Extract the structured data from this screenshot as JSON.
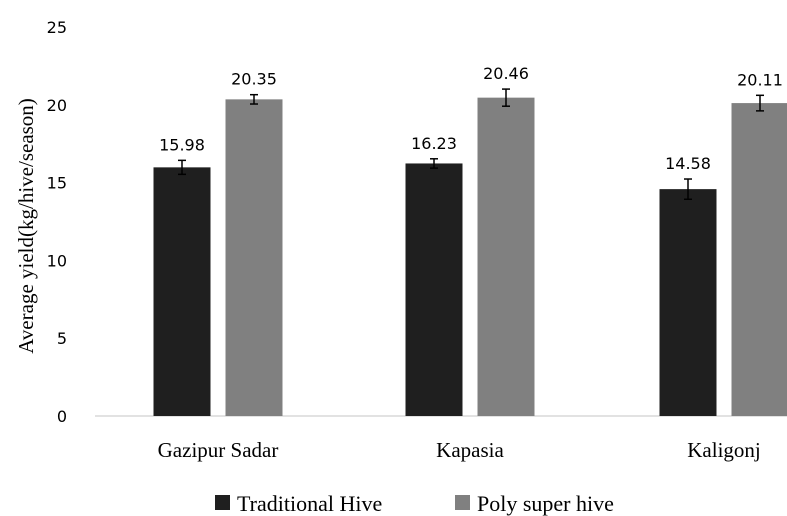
{
  "chart_data": {
    "type": "bar",
    "ylabel": "Average yield(kg/hive/season)",
    "xlabel": "",
    "ylim": [
      0,
      25
    ],
    "yticks": [
      0,
      5,
      10,
      15,
      20,
      25
    ],
    "categories": [
      "Gazipur Sadar",
      "Kapasia",
      "Kaligonj"
    ],
    "series": [
      {
        "name": "Traditional Hive",
        "color": "#1f1f1f",
        "values": [
          15.98,
          16.23,
          14.58
        ],
        "errors": [
          0.45,
          0.3,
          0.65
        ],
        "labels": [
          "15.98",
          "16.23",
          "14.58"
        ]
      },
      {
        "name": "Poly super hive",
        "color": "#808080",
        "values": [
          20.35,
          20.46,
          20.11
        ],
        "errors": [
          0.3,
          0.55,
          0.5
        ],
        "labels": [
          "20.35",
          "20.46",
          "20.11"
        ]
      }
    ],
    "grid": false,
    "legend_position": "bottom"
  }
}
